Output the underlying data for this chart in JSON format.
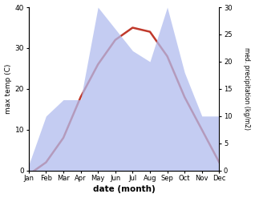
{
  "months": [
    "Jan",
    "Feb",
    "Mar",
    "Apr",
    "May",
    "Jun",
    "Jul",
    "Aug",
    "Sep",
    "Oct",
    "Nov",
    "Dec"
  ],
  "x": [
    0,
    1,
    2,
    3,
    4,
    5,
    6,
    7,
    8,
    9,
    10,
    11
  ],
  "temperature": [
    -1,
    2,
    8,
    18,
    26,
    32,
    35,
    34,
    28,
    18,
    10,
    2
  ],
  "precipitation": [
    1,
    10,
    13,
    13,
    30,
    26,
    22,
    20,
    30,
    18,
    10,
    10
  ],
  "temp_color": "#c0392b",
  "precip_color": "#b0bcee",
  "temp_ylim": [
    0,
    40
  ],
  "precip_ylim": [
    0,
    30
  ],
  "xlabel": "date (month)",
  "ylabel_left": "max temp (C)",
  "ylabel_right": "med. precipitation (kg/m2)",
  "temp_linewidth": 1.8,
  "background_color": "#ffffff"
}
